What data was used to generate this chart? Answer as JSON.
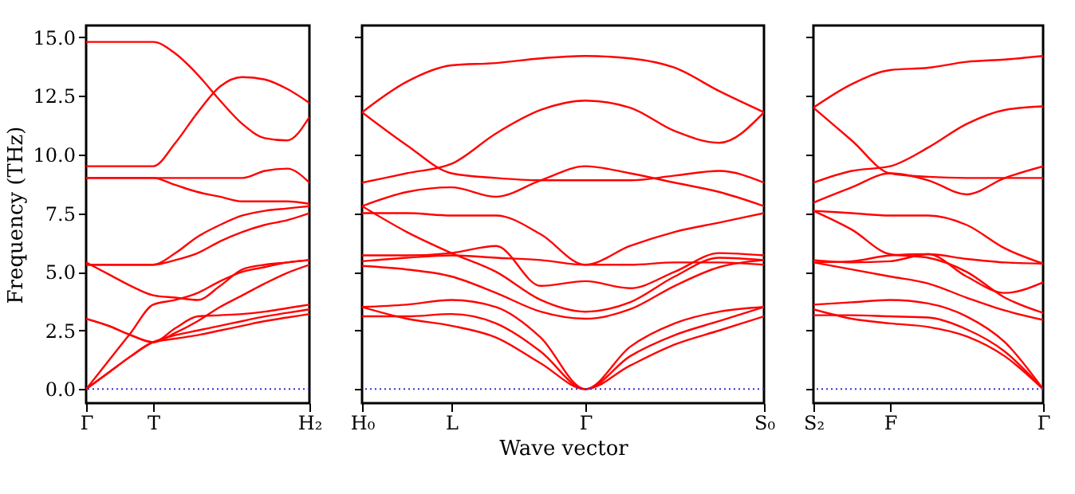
{
  "chart_data": [
    {
      "type": "line",
      "ylabel": "Frequency (THz)",
      "categories": [
        "Γ",
        null,
        null,
        "T",
        null,
        null,
        null,
        null,
        null,
        null,
        "H₂"
      ],
      "ylim": [
        -0.6,
        15.5
      ],
      "yticks": [
        {
          "value": 0,
          "label": "0.0"
        },
        2.5,
        {
          "value": 5,
          "label": "5.0"
        },
        7.5,
        {
          "value": 10,
          "label": "10.0"
        },
        12.5,
        {
          "value": 15,
          "label": "15.0"
        }
      ],
      "grid": false,
      "ref_lines": [
        {
          "axis": "y",
          "value": 0,
          "color": "#3333cc",
          "line_style": "dotted"
        }
      ],
      "series": [
        {
          "color": "#ff0000",
          "values": [
            14.8,
            14.8,
            14.8,
            14.8,
            14.3,
            13.4,
            12.3,
            11.3,
            10.7,
            10.6,
            11.6
          ]
        },
        {
          "color": "#ff0000",
          "values": [
            9.5,
            9.5,
            9.5,
            9.5,
            10.5,
            11.8,
            12.9,
            13.3,
            13.2,
            12.8,
            12.2
          ]
        },
        {
          "color": "#ff0000",
          "values": [
            9.0,
            9.0,
            9.0,
            9.0,
            9.0,
            9.0,
            9.0,
            9.0,
            9.3,
            9.4,
            8.8
          ]
        },
        {
          "color": "#ff0000",
          "values": [
            9.0,
            9.0,
            9.0,
            9.0,
            8.7,
            8.4,
            8.2,
            8.0,
            8.0,
            8.0,
            7.9
          ]
        },
        {
          "color": "#ff0000",
          "values": [
            5.3,
            5.3,
            5.3,
            5.3,
            5.8,
            6.5,
            7.0,
            7.4,
            7.6,
            7.7,
            7.8
          ]
        },
        {
          "color": "#ff0000",
          "values": [
            5.3,
            5.3,
            5.3,
            5.3,
            5.5,
            5.8,
            6.3,
            6.7,
            7.0,
            7.2,
            7.5
          ]
        },
        {
          "color": "#ff0000",
          "values": [
            5.4,
            4.9,
            4.4,
            4.0,
            3.9,
            3.8,
            4.4,
            5.1,
            5.3,
            5.4,
            5.5
          ]
        },
        {
          "color": "#ff0000",
          "values": [
            0,
            1.2,
            2.4,
            3.6,
            3.8,
            4.1,
            4.6,
            5.0,
            5.2,
            5.4,
            5.5
          ]
        },
        {
          "color": "#ff0000",
          "values": [
            3.0,
            2.7,
            2.3,
            2.0,
            2.6,
            3.1,
            3.15,
            3.2,
            3.3,
            3.45,
            3.6
          ]
        },
        {
          "color": "#ff0000",
          "values": [
            0,
            0.7,
            1.4,
            2.0,
            2.3,
            2.5,
            2.7,
            2.9,
            3.1,
            3.25,
            3.4
          ]
        },
        {
          "color": "#ff0000",
          "values": [
            0,
            0.7,
            1.4,
            2.0,
            2.15,
            2.3,
            2.5,
            2.7,
            2.9,
            3.05,
            3.2
          ]
        },
        {
          "color": "#ff0000",
          "values": [
            3.0,
            2.7,
            2.3,
            2.0,
            2.4,
            2.9,
            3.5,
            4.0,
            4.5,
            4.95,
            5.3
          ]
        }
      ]
    },
    {
      "type": "line",
      "xlabel": "Wave vector",
      "categories": [
        "H₀",
        null,
        "L",
        null,
        null,
        "Γ",
        null,
        null,
        null,
        "S₀"
      ],
      "ylim": [
        -0.6,
        15.5
      ],
      "yticks": [
        0,
        2.5,
        5,
        7.5,
        10,
        12.5,
        15
      ],
      "tick_labels": "x",
      "grid": false,
      "ref_lines": [
        {
          "axis": "y",
          "value": 0,
          "color": "#3333cc",
          "line_style": "dotted"
        }
      ],
      "series": [
        {
          "color": "#ff0000",
          "values": [
            11.8,
            13.1,
            13.8,
            13.9,
            14.1,
            14.2,
            14.1,
            13.7,
            12.7,
            11.8
          ]
        },
        {
          "color": "#ff0000",
          "values": [
            8.8,
            9.2,
            9.6,
            10.9,
            11.9,
            12.3,
            12.0,
            11.0,
            10.5,
            11.8
          ]
        },
        {
          "color": "#ff0000",
          "values": [
            11.8,
            10.4,
            9.2,
            9.0,
            8.9,
            8.9,
            8.9,
            9.1,
            9.3,
            8.8
          ]
        },
        {
          "color": "#ff0000",
          "values": [
            7.8,
            8.4,
            8.6,
            8.2,
            8.9,
            9.5,
            9.2,
            8.8,
            8.4,
            7.8
          ]
        },
        {
          "color": "#ff0000",
          "values": [
            7.5,
            7.5,
            7.4,
            7.4,
            6.6,
            5.3,
            6.1,
            6.7,
            7.1,
            7.5
          ]
        },
        {
          "color": "#ff0000",
          "values": [
            7.8,
            6.7,
            5.8,
            5.0,
            3.8,
            3.3,
            3.7,
            4.8,
            5.6,
            5.5
          ]
        },
        {
          "color": "#ff0000",
          "values": [
            5.7,
            5.7,
            5.8,
            6.1,
            4.4,
            4.6,
            4.3,
            5.0,
            5.8,
            5.7
          ]
        },
        {
          "color": "#ff0000",
          "values": [
            5.45,
            5.6,
            5.7,
            5.6,
            5.5,
            5.3,
            5.3,
            5.4,
            5.4,
            5.3
          ]
        },
        {
          "color": "#ff0000",
          "values": [
            5.25,
            5.1,
            4.8,
            4.1,
            3.3,
            3.0,
            3.4,
            4.4,
            5.2,
            5.5
          ]
        },
        {
          "color": "#ff0000",
          "values": [
            3.5,
            3.6,
            3.8,
            3.5,
            2.2,
            0,
            1.8,
            2.8,
            3.3,
            3.5
          ]
        },
        {
          "color": "#ff0000",
          "values": [
            3.1,
            3.1,
            3.2,
            2.8,
            1.6,
            0,
            1.4,
            2.3,
            2.9,
            3.5
          ]
        },
        {
          "color": "#ff0000",
          "values": [
            3.5,
            3.0,
            2.7,
            2.2,
            1.1,
            0,
            1.0,
            1.9,
            2.5,
            3.1
          ]
        }
      ]
    },
    {
      "type": "line",
      "categories": [
        "S₂",
        null,
        "F",
        null,
        null,
        null,
        "Γ"
      ],
      "ylim": [
        -0.6,
        15.5
      ],
      "yticks": [
        0,
        2.5,
        5,
        7.5,
        10,
        12.5,
        15
      ],
      "tick_labels": "x",
      "grid": false,
      "ref_lines": [
        {
          "axis": "y",
          "value": 0,
          "color": "#3333cc",
          "line_style": "dotted"
        }
      ],
      "series": [
        {
          "color": "#ff0000",
          "values": [
            12.0,
            13.0,
            13.6,
            13.7,
            13.95,
            14.05,
            14.2
          ]
        },
        {
          "color": "#ff0000",
          "values": [
            8.8,
            9.3,
            9.5,
            10.3,
            11.3,
            11.9,
            12.05
          ]
        },
        {
          "color": "#ff0000",
          "values": [
            12.0,
            10.6,
            9.2,
            9.05,
            9.0,
            9.0,
            9.0
          ]
        },
        {
          "color": "#ff0000",
          "values": [
            7.95,
            8.6,
            9.2,
            8.9,
            8.3,
            9.0,
            9.5
          ]
        },
        {
          "color": "#ff0000",
          "values": [
            7.6,
            7.5,
            7.4,
            7.4,
            7.0,
            6.0,
            5.35
          ]
        },
        {
          "color": "#ff0000",
          "values": [
            7.6,
            6.8,
            5.75,
            5.6,
            5.0,
            3.9,
            3.25
          ]
        },
        {
          "color": "#ff0000",
          "values": [
            5.5,
            5.4,
            5.45,
            5.75,
            5.55,
            5.4,
            5.35
          ]
        },
        {
          "color": "#ff0000",
          "values": [
            5.4,
            5.45,
            5.7,
            5.75,
            4.8,
            4.1,
            4.55
          ]
        },
        {
          "color": "#ff0000",
          "values": [
            5.4,
            5.1,
            4.8,
            4.5,
            3.9,
            3.35,
            2.95
          ]
        },
        {
          "color": "#ff0000",
          "values": [
            3.6,
            3.7,
            3.8,
            3.65,
            3.1,
            2.0,
            0
          ]
        },
        {
          "color": "#ff0000",
          "values": [
            3.15,
            3.15,
            3.1,
            3.05,
            2.55,
            1.6,
            0
          ]
        },
        {
          "color": "#ff0000",
          "values": [
            3.4,
            3.0,
            2.8,
            2.65,
            2.25,
            1.4,
            0
          ]
        }
      ]
    }
  ]
}
